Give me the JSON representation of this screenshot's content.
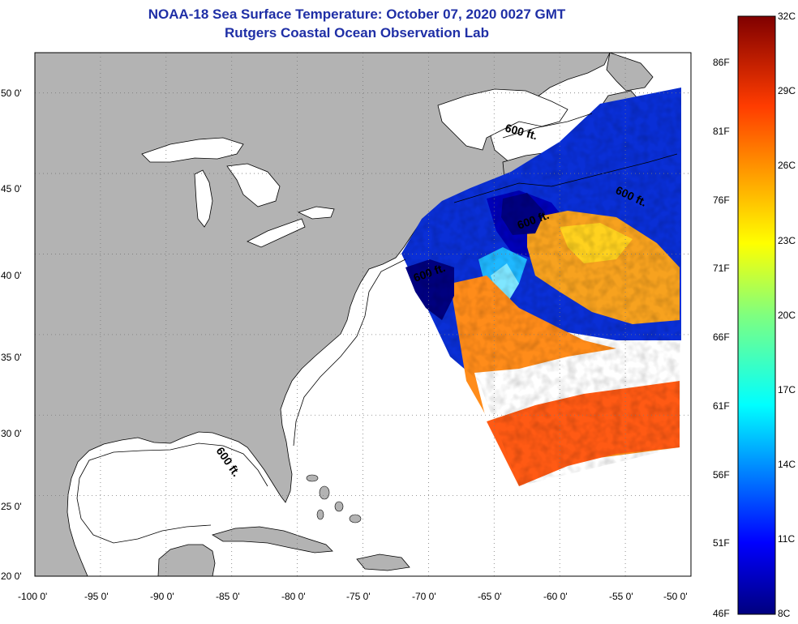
{
  "header": {
    "title": "NOAA-18 Sea Surface Temperature:  October 07, 2020 0027 GMT",
    "subtitle": "Rutgers Coastal Ocean Observation Lab"
  },
  "map": {
    "projection": "lat-lon",
    "lon_range": [
      -100,
      -50
    ],
    "lat_range": [
      20,
      52.5
    ],
    "lon_ticks": [
      "-100 0'",
      "-95 0'",
      "-90 0'",
      "-85 0'",
      "-80 0'",
      "-75 0'",
      "-70 0'",
      "-65 0'",
      "-60 0'",
      "-55 0'",
      "-50 0'"
    ],
    "lat_ticks": [
      "50 0'",
      "45 0'",
      "40 0'",
      "35 0'",
      "30 0'",
      "25 0'",
      "20 0'"
    ],
    "contour_labels": [
      "600 ft.",
      "600 ft.",
      "600 ft.",
      "600 ft.",
      "600 ft."
    ],
    "colors": {
      "land": "#b3b3b3",
      "ocean": "#ffffff",
      "grid": "#7a7a7a",
      "title": "#1f2fa6"
    }
  },
  "colorbar": {
    "min_c": 8,
    "max_c": 32,
    "celsius_labels": [
      "32C",
      "29C",
      "26C",
      "23C",
      "20C",
      "17C",
      "14C",
      "11C",
      "8C"
    ],
    "fahrenheit_labels": [
      "86F",
      "81F",
      "76F",
      "71F",
      "66F",
      "61F",
      "56F",
      "51F",
      "46F"
    ]
  }
}
